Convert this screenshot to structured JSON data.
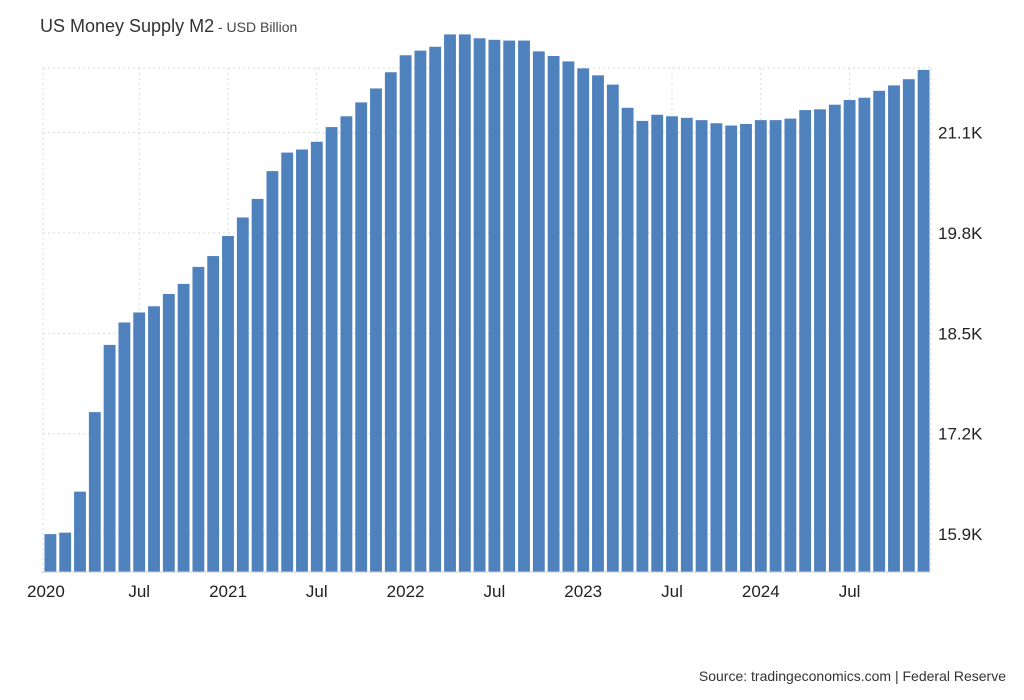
{
  "header": {
    "title": "US Money Supply M2",
    "separator": " - ",
    "unit": "USD Billion"
  },
  "footer": {
    "source": "Source: tradingeconomics.com | Federal Reserve"
  },
  "colors": {
    "bar": "#4f81bd",
    "grid": "#d9d9d9",
    "axis": "#cccccc"
  },
  "chart_data": {
    "type": "bar",
    "title": "US Money Supply M2",
    "subtitle": "USD Billion",
    "xlabel": "",
    "ylabel": "",
    "ylim": [
      15410,
      21935
    ],
    "y_ticks": [
      15900,
      17200,
      18500,
      19800,
      21100
    ],
    "y_tick_labels": [
      "15.9K",
      "17.2K",
      "18.5K",
      "19.8K",
      "21.1K"
    ],
    "x_tick_labels": [
      {
        "label": "2020",
        "index": 0
      },
      {
        "label": "Jul",
        "index": 6
      },
      {
        "label": "2021",
        "index": 12
      },
      {
        "label": "Jul",
        "index": 18
      },
      {
        "label": "2022",
        "index": 24
      },
      {
        "label": "Jul",
        "index": 30
      },
      {
        "label": "2023",
        "index": 36
      },
      {
        "label": "Jul",
        "index": 42
      },
      {
        "label": "2024",
        "index": 48
      },
      {
        "label": "Jul",
        "index": 54
      }
    ],
    "grid": true,
    "categories": [
      "2020-01",
      "2020-02",
      "2020-03",
      "2020-04",
      "2020-05",
      "2020-06",
      "2020-07",
      "2020-08",
      "2020-09",
      "2020-10",
      "2020-11",
      "2020-12",
      "2021-01",
      "2021-02",
      "2021-03",
      "2021-04",
      "2021-05",
      "2021-06",
      "2021-07",
      "2021-08",
      "2021-09",
      "2021-10",
      "2021-11",
      "2021-12",
      "2022-01",
      "2022-02",
      "2022-03",
      "2022-04",
      "2022-05",
      "2022-06",
      "2022-07",
      "2022-08",
      "2022-09",
      "2022-10",
      "2022-11",
      "2022-12",
      "2023-01",
      "2023-02",
      "2023-03",
      "2023-04",
      "2023-05",
      "2023-06",
      "2023-07",
      "2023-08",
      "2023-09",
      "2023-10",
      "2023-11",
      "2023-12",
      "2024-01",
      "2024-02",
      "2024-03",
      "2024-04",
      "2024-05",
      "2024-06",
      "2024-07",
      "2024-08",
      "2024-09",
      "2024-10",
      "2024-11",
      "2024-12"
    ],
    "values": [
      15900,
      15920,
      16450,
      17480,
      18350,
      18640,
      18770,
      18850,
      19010,
      19140,
      19360,
      19500,
      19760,
      20000,
      20240,
      20600,
      20840,
      20880,
      20980,
      21170,
      21310,
      21490,
      21670,
      21880,
      22100,
      22160,
      22210,
      22370,
      22370,
      22320,
      22300,
      22290,
      22290,
      22150,
      22090,
      22020,
      21930,
      21840,
      21720,
      21420,
      21250,
      21330,
      21310,
      21290,
      21260,
      21220,
      21190,
      21210,
      21260,
      21260,
      21280,
      21390,
      21400,
      21460,
      21520,
      21550,
      21640,
      21710,
      21790,
      21910
    ]
  }
}
